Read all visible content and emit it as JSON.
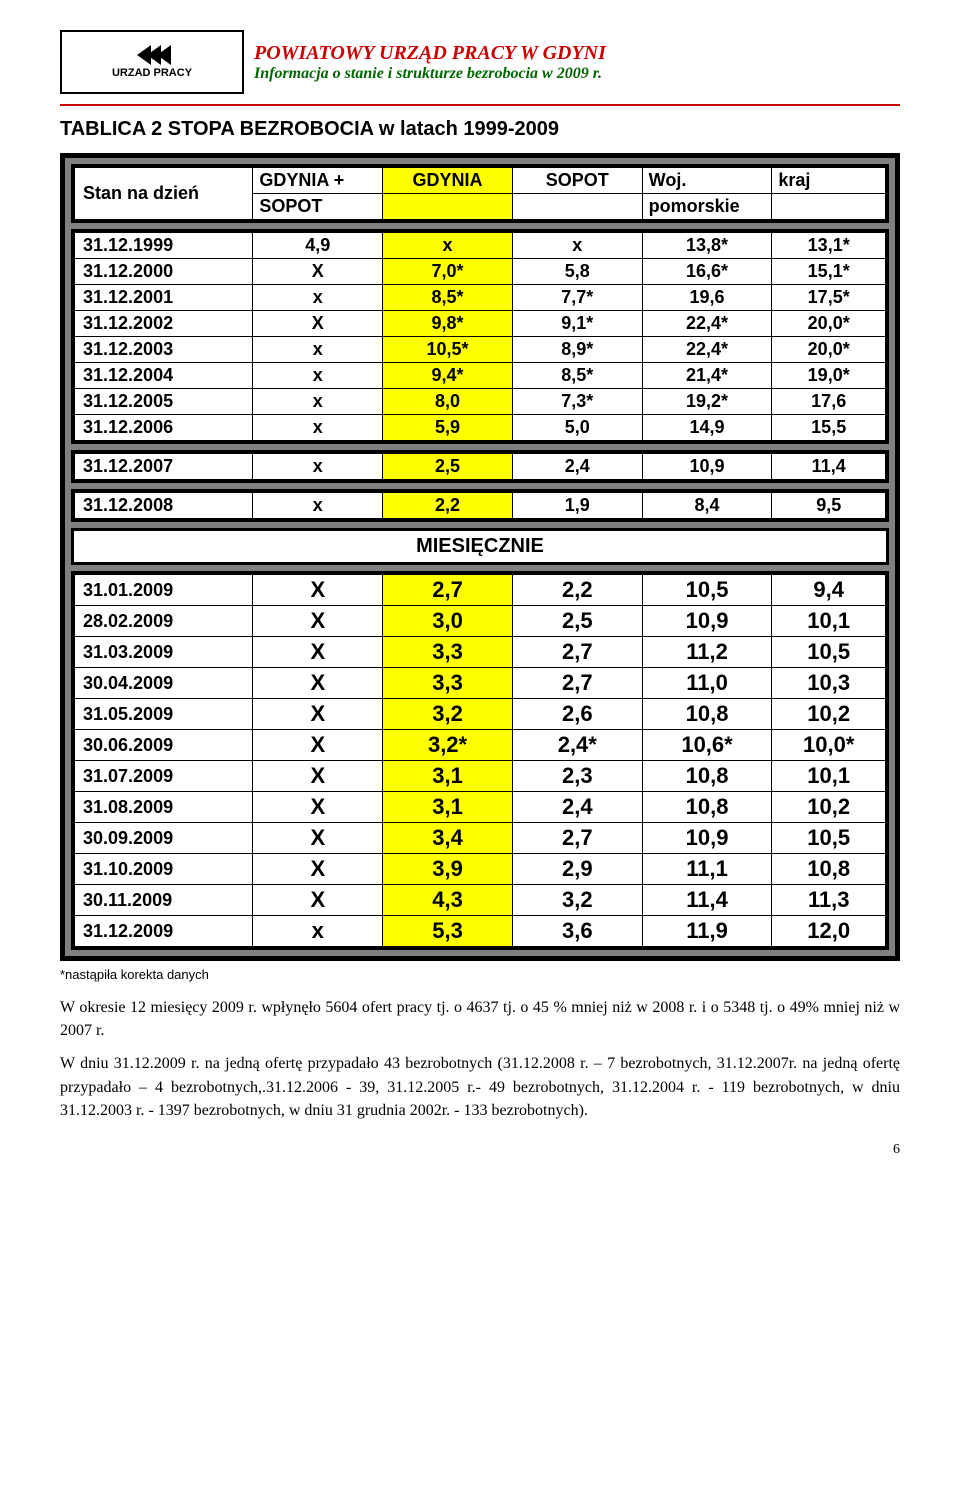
{
  "header": {
    "logo_label": "URZAD PRACY",
    "title": "POWIATOWY URZĄD PRACY W GDYNI",
    "subtitle": "Informacja o stanie i strukturze bezrobocia  w  2009 r."
  },
  "section_title": "TABLICA 2 STOPA BEZROBOCIA w latach 1999-2009",
  "columns": {
    "c0": "Stan na dzień",
    "c1a": "GDYNIA +",
    "c1b": "SOPOT",
    "c2": "GDYNIA",
    "c3": "SOPOT",
    "c4a": "Woj.",
    "c4b": "pomorskie",
    "c5": "kraj"
  },
  "yearly": [
    {
      "d": "31.12.1999",
      "v1": "4,9",
      "v2": "x",
      "v3": "x",
      "v4": "13,8*",
      "v5": "13,1*"
    },
    {
      "d": "31.12.2000",
      "v1": "X",
      "v2": "7,0*",
      "v3": "5,8",
      "v4": "16,6*",
      "v5": "15,1*"
    },
    {
      "d": "31.12.2001",
      "v1": "x",
      "v2": "8,5*",
      "v3": "7,7*",
      "v4": "19,6",
      "v5": "17,5*"
    },
    {
      "d": "31.12.2002",
      "v1": "X",
      "v2": "9,8*",
      "v3": "9,1*",
      "v4": "22,4*",
      "v5": "20,0*"
    },
    {
      "d": "31.12.2003",
      "v1": "x",
      "v2": "10,5*",
      "v3": "8,9*",
      "v4": "22,4*",
      "v5": "20,0*"
    },
    {
      "d": "31.12.2004",
      "v1": "x",
      "v2": "9,4*",
      "v3": "8,5*",
      "v4": "21,4*",
      "v5": "19,0*"
    },
    {
      "d": "31.12.2005",
      "v1": "x",
      "v2": "8,0",
      "v3": "7,3*",
      "v4": "19,2*",
      "v5": "17,6"
    },
    {
      "d": "31.12.2006",
      "v1": "x",
      "v2": "5,9",
      "v3": "5,0",
      "v4": "14,9",
      "v5": "15,5"
    }
  ],
  "row2007": {
    "d": "31.12.2007",
    "v1": "x",
    "v2": "2,5",
    "v3": "2,4",
    "v4": "10,9",
    "v5": "11,4"
  },
  "row2008": {
    "d": "31.12.2008",
    "v1": "x",
    "v2": "2,2",
    "v3": "1,9",
    "v4": "8,4",
    "v5": "9,5"
  },
  "monthly_title": "MIESIĘCZNIE",
  "monthly": [
    {
      "d": "31.01.2009",
      "v1": "X",
      "v2": "2,7",
      "v3": "2,2",
      "v4": "10,5",
      "v5": "9,4"
    },
    {
      "d": "28.02.2009",
      "v1": "X",
      "v2": "3,0",
      "v3": "2,5",
      "v4": "10,9",
      "v5": "10,1"
    },
    {
      "d": "31.03.2009",
      "v1": "X",
      "v2": "3,3",
      "v3": "2,7",
      "v4": "11,2",
      "v5": "10,5"
    },
    {
      "d": "30.04.2009",
      "v1": "X",
      "v2": "3,3",
      "v3": "2,7",
      "v4": "11,0",
      "v5": "10,3"
    },
    {
      "d": "31.05.2009",
      "v1": "X",
      "v2": "3,2",
      "v3": "2,6",
      "v4": "10,8",
      "v5": "10,2"
    },
    {
      "d": "30.06.2009",
      "v1": "X",
      "v2": "3,2*",
      "v3": "2,4*",
      "v4": "10,6*",
      "v5": "10,0*"
    },
    {
      "d": "31.07.2009",
      "v1": "X",
      "v2": "3,1",
      "v3": "2,3",
      "v4": "10,8",
      "v5": "10,1"
    },
    {
      "d": "31.08.2009",
      "v1": "X",
      "v2": "3,1",
      "v3": "2,4",
      "v4": "10,8",
      "v5": "10,2"
    },
    {
      "d": "30.09.2009",
      "v1": "X",
      "v2": "3,4",
      "v3": "2,7",
      "v4": "10,9",
      "v5": "10,5"
    },
    {
      "d": "31.10.2009",
      "v1": "X",
      "v2": "3,9",
      "v3": "2,9",
      "v4": "11,1",
      "v5": "10,8"
    },
    {
      "d": "30.11.2009",
      "v1": "X",
      "v2": "4,3",
      "v3": "3,2",
      "v4": "11,4",
      "v5": "11,3"
    },
    {
      "d": "31.12.2009",
      "v1": "x",
      "v2": "5,3",
      "v3": "3,6",
      "v4": "11,9",
      "v5": "12,0"
    }
  ],
  "footnote": "*nastąpiła korekta danych",
  "para1": "W okresie 12 miesięcy 2009 r. wpłynęło 5604 ofert pracy tj. o 4637 tj. o 45 % mniej niż w 2008 r. i o 5348 tj. o 49% mniej niż w 2007 r.",
  "para2": "W dniu 31.12.2009 r. na jedną ofertę przypadało 43 bezrobotnych (31.12.2008 r. – 7 bezrobotnych, 31.12.2007r. na jedną ofertę przypadało – 4 bezrobotnych,.31.12.2006 - 39, 31.12.2005 r.- 49 bezrobotnych, 31.12.2004 r. - 119 bezrobotnych, w dniu 31.12.2003 r. - 1397 bezrobotnych, w dniu 31 grudnia 2002r.  - 133 bezrobotnych).",
  "page_number": "6",
  "colors": {
    "highlight": "#ffff00",
    "title_red": "#cc0000",
    "sub_green": "#006600"
  }
}
